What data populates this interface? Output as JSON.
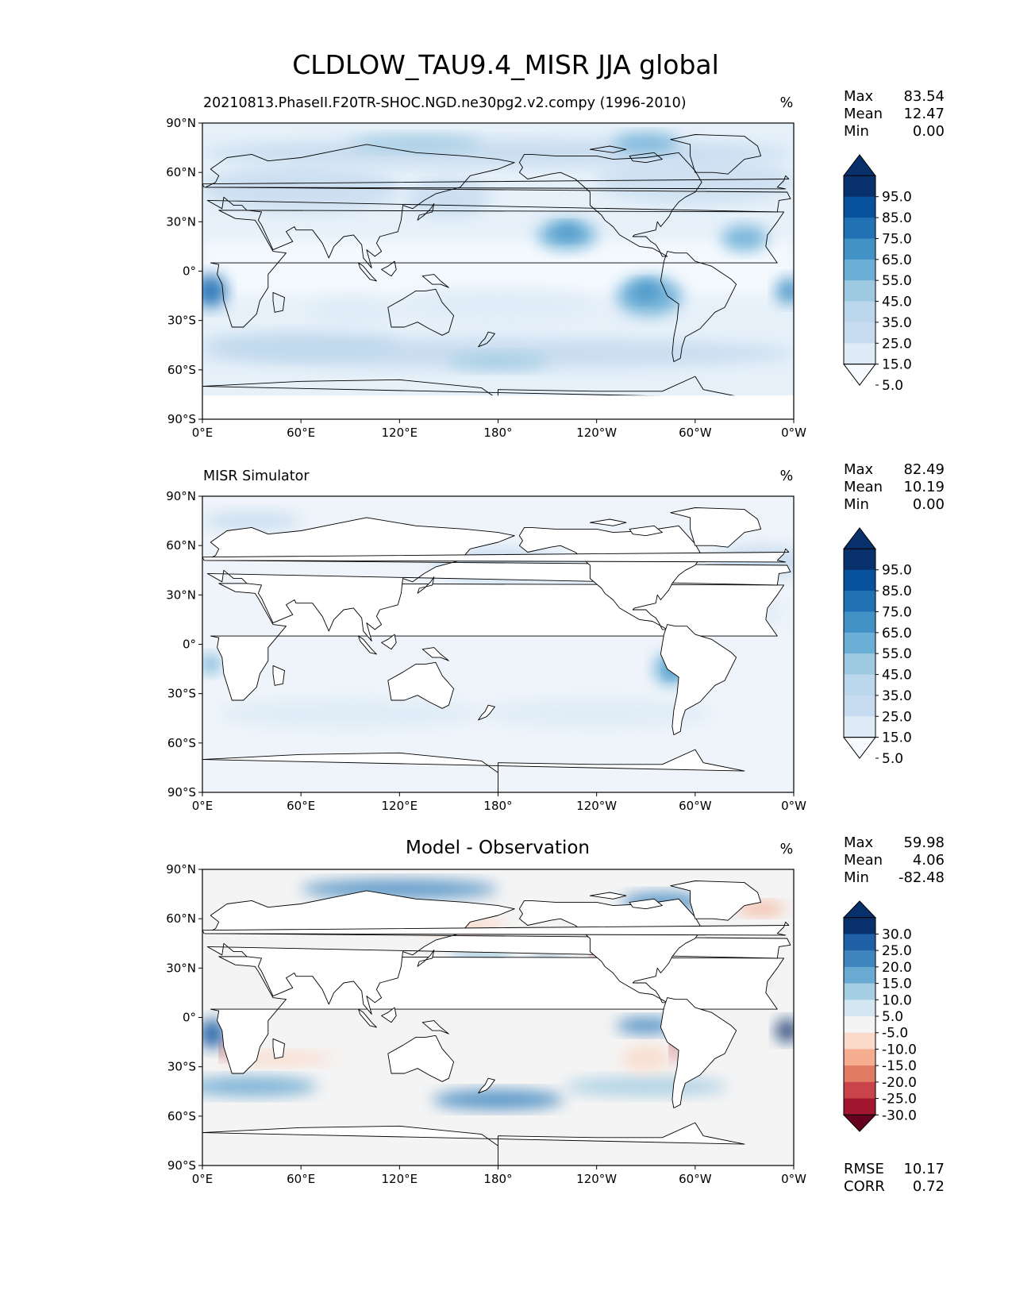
{
  "title": "CLDLOW_TAU9.4_MISR JJA global",
  "panels": [
    {
      "id": "test",
      "label": "20210813.PhaseII.F20TR-SHOC.NGD.ne30pg2.v2.compy (1996-2010)",
      "units": "%",
      "stats": [
        [
          "Max",
          "83.54"
        ],
        [
          "Mean",
          "12.47"
        ],
        [
          "Min",
          "0.00"
        ]
      ],
      "colorbar_levels": [
        "95.0",
        "85.0",
        "75.0",
        "65.0",
        "55.0",
        "45.0",
        "35.0",
        "25.0",
        "15.0",
        "5.0"
      ],
      "colorbar_colors": [
        "#08306b",
        "#08519c",
        "#2171b5",
        "#4292c6",
        "#6baed6",
        "#9ecae1",
        "#bcd7ec",
        "#c6dbef",
        "#deebf7",
        "#f7fbff"
      ],
      "extras": []
    },
    {
      "id": "ref",
      "label": "MISR Simulator",
      "units": "%",
      "stats": [
        [
          "Max",
          "82.49"
        ],
        [
          "Mean",
          "10.19"
        ],
        [
          "Min",
          "0.00"
        ]
      ],
      "colorbar_levels": [
        "95.0",
        "85.0",
        "75.0",
        "65.0",
        "55.0",
        "45.0",
        "35.0",
        "25.0",
        "15.0",
        "5.0"
      ],
      "colorbar_colors": [
        "#08306b",
        "#08519c",
        "#2171b5",
        "#4292c6",
        "#6baed6",
        "#9ecae1",
        "#bcd7ec",
        "#c6dbef",
        "#deebf7",
        "#f7fbff"
      ],
      "extras": []
    },
    {
      "id": "diff",
      "label": "Model - Observation",
      "units": "%",
      "stats": [
        [
          "Max",
          "59.98"
        ],
        [
          "Mean",
          "4.06"
        ],
        [
          "Min",
          "-82.48"
        ]
      ],
      "colorbar_levels": [
        "30.0",
        "25.0",
        "20.0",
        "15.0",
        "10.0",
        "5.0",
        "-5.0",
        "-10.0",
        "-15.0",
        "-20.0",
        "-25.0",
        "-30.0"
      ],
      "colorbar_colors": [
        "#08306b",
        "#1f5fa6",
        "#3f86c0",
        "#6aa9d2",
        "#a6cee3",
        "#d4e6f1",
        "#f4f4f4",
        "#fbd9c8",
        "#f5ad8f",
        "#e07a62",
        "#c8434a",
        "#a3162f",
        "#67001f"
      ],
      "extras": [
        [
          "RMSE",
          "10.17"
        ],
        [
          "CORR",
          "0.72"
        ]
      ]
    }
  ],
  "axes": {
    "xticks": [
      "0°E",
      "60°E",
      "120°E",
      "180°",
      "120°W",
      "60°W",
      "0°W"
    ],
    "yticks": [
      "90°N",
      "60°N",
      "30°N",
      "0°",
      "30°S",
      "60°S",
      "90°S"
    ]
  }
}
